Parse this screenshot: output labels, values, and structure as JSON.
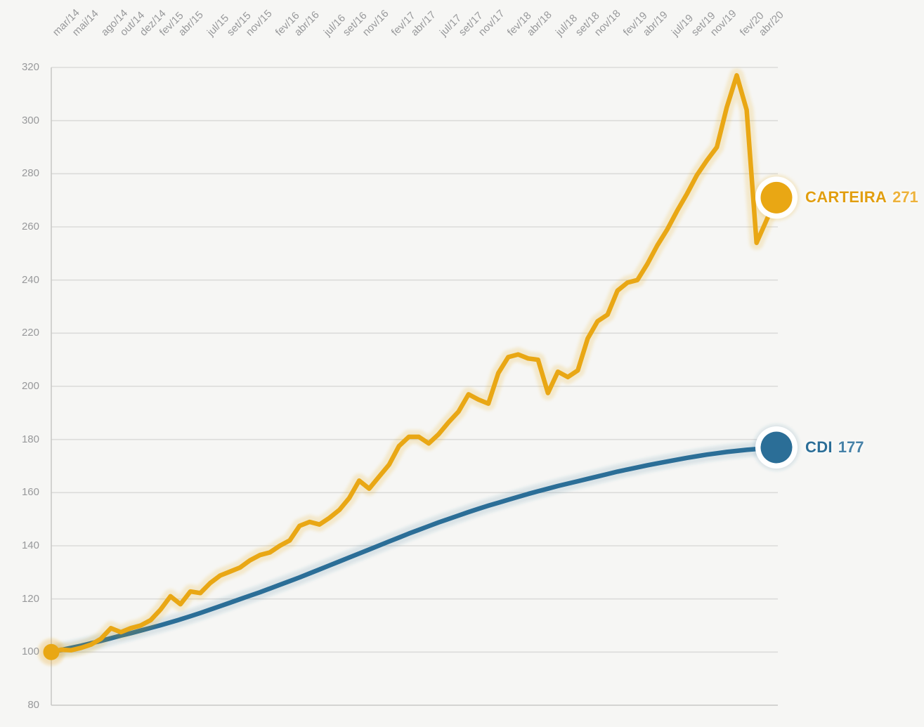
{
  "page": {
    "background": "#f6f6f4"
  },
  "chart_data": {
    "type": "line",
    "title": "",
    "xlabel": "",
    "ylabel": "",
    "x_unit": "month",
    "grid": "horizontal",
    "legend_position": "right-of-line-end",
    "ylim": [
      80,
      320
    ],
    "y_ticks": [
      320,
      300,
      280,
      260,
      240,
      220,
      200,
      180,
      160,
      140,
      120,
      100,
      80
    ],
    "x": [
      "mar/14",
      "abr/14",
      "mai/14",
      "jun/14",
      "jul/14",
      "ago/14",
      "set/14",
      "out/14",
      "nov/14",
      "dez/14",
      "jan/15",
      "fev/15",
      "mar/15",
      "abr/15",
      "mai/15",
      "jun/15",
      "jul/15",
      "ago/15",
      "set/15",
      "out/15",
      "nov/15",
      "dez/15",
      "jan/16",
      "fev/16",
      "mar/16",
      "abr/16",
      "mai/16",
      "jun/16",
      "jul/16",
      "ago/16",
      "set/16",
      "out/16",
      "nov/16",
      "dez/16",
      "jan/17",
      "fev/17",
      "mar/17",
      "abr/17",
      "mai/17",
      "jun/17",
      "jul/17",
      "ago/17",
      "set/17",
      "out/17",
      "nov/17",
      "dez/17",
      "jan/18",
      "fev/18",
      "mar/18",
      "abr/18",
      "mai/18",
      "jun/18",
      "jul/18",
      "ago/18",
      "set/18",
      "out/18",
      "nov/18",
      "dez/18",
      "jan/19",
      "fev/19",
      "mar/19",
      "abr/19",
      "mai/19",
      "jun/19",
      "jul/19",
      "ago/19",
      "set/19",
      "out/19",
      "nov/19",
      "dez/19",
      "jan/20",
      "fev/20",
      "mar/20",
      "abr/20"
    ],
    "x_tick_labels": [
      {
        "label": "mar/14",
        "month": 0
      },
      {
        "label": "mai/14",
        "month": 2
      },
      {
        "label": "ago/14",
        "month": 5
      },
      {
        "label": "out/14",
        "month": 7
      },
      {
        "label": "dez/14",
        "month": 9
      },
      {
        "label": "fev/15",
        "month": 11
      },
      {
        "label": "abr/15",
        "month": 13
      },
      {
        "label": "jul/15",
        "month": 16
      },
      {
        "label": "set/15",
        "month": 18
      },
      {
        "label": "nov/15",
        "month": 20
      },
      {
        "label": "fev/16",
        "month": 23
      },
      {
        "label": "abr/16",
        "month": 25
      },
      {
        "label": "jul/16",
        "month": 28
      },
      {
        "label": "set/16",
        "month": 30
      },
      {
        "label": "nov/16",
        "month": 32
      },
      {
        "label": "fev/17",
        "month": 35
      },
      {
        "label": "abr/17",
        "month": 37
      },
      {
        "label": "jul/17",
        "month": 40
      },
      {
        "label": "set/17",
        "month": 42
      },
      {
        "label": "nov/17",
        "month": 44
      },
      {
        "label": "fev/18",
        "month": 47
      },
      {
        "label": "abr/18",
        "month": 49
      },
      {
        "label": "jul/18",
        "month": 52
      },
      {
        "label": "set/18",
        "month": 54
      },
      {
        "label": "nov/18",
        "month": 56
      },
      {
        "label": "fev/19",
        "month": 59
      },
      {
        "label": "abr/19",
        "month": 61
      },
      {
        "label": "jul/19",
        "month": 64
      },
      {
        "label": "set/19",
        "month": 66
      },
      {
        "label": "nov/19",
        "month": 68
      },
      {
        "label": "fev/20",
        "month": 71
      },
      {
        "label": "abr/20",
        "month": 73
      }
    ],
    "axis_text_color": "#98999b",
    "grid_color": "#dcdcda",
    "axis_line_color": "#c9c9c7",
    "series": [
      {
        "name": "CARTEIRA",
        "display_value": "271",
        "color": "#E9A714",
        "halo_color": "rgba(233,167,20,0.17)",
        "label_name_color": "#E19E10",
        "label_value_color": "#EDB23C",
        "values": [
          100,
          100.9,
          100.7,
          101.6,
          102.8,
          105,
          109,
          107.5,
          109,
          110,
          112,
          116,
          121,
          118,
          122.8,
          122.2,
          126,
          128.8,
          130.3,
          131.8,
          134.5,
          136.5,
          137.5,
          140,
          142,
          147.5,
          149,
          148,
          150.5,
          153.5,
          158,
          164.5,
          161.5,
          166,
          170.5,
          177.5,
          181,
          181,
          178.5,
          182,
          186.5,
          190.5,
          197,
          195,
          193.5,
          205,
          211,
          212,
          210.5,
          210,
          197.5,
          205.5,
          203.5,
          206,
          218,
          224.5,
          227,
          236,
          239,
          240,
          246,
          253,
          259,
          266,
          272.5,
          279.5,
          285,
          290,
          305,
          317,
          304,
          254,
          262.5,
          271
        ]
      },
      {
        "name": "CDI",
        "display_value": "177",
        "color": "#2B6E97",
        "halo_color": "rgba(43,110,151,0.14)",
        "label_name_color": "#2B6E97",
        "label_value_color": "#4681A7",
        "values": [
          100,
          100.8,
          101.6,
          102.4,
          103.3,
          104.2,
          105.2,
          106.2,
          107.1,
          108.1,
          109.1,
          110.1,
          111.2,
          112.3,
          113.5,
          114.7,
          116,
          117.3,
          118.6,
          119.9,
          121.2,
          122.5,
          123.9,
          125.3,
          126.7,
          128.1,
          129.6,
          131.1,
          132.6,
          134.1,
          135.6,
          137.1,
          138.6,
          140.1,
          141.6,
          143.1,
          144.6,
          146,
          147.4,
          148.8,
          150.1,
          151.4,
          152.7,
          153.9,
          155.1,
          156.2,
          157.3,
          158.4,
          159.5,
          160.5,
          161.5,
          162.5,
          163.4,
          164.3,
          165.2,
          166.1,
          167,
          167.9,
          168.7,
          169.5,
          170.3,
          171,
          171.7,
          172.4,
          173.1,
          173.7,
          174.3,
          174.8,
          175.3,
          175.7,
          176.1,
          176.4,
          176.7,
          177
        ]
      }
    ]
  }
}
